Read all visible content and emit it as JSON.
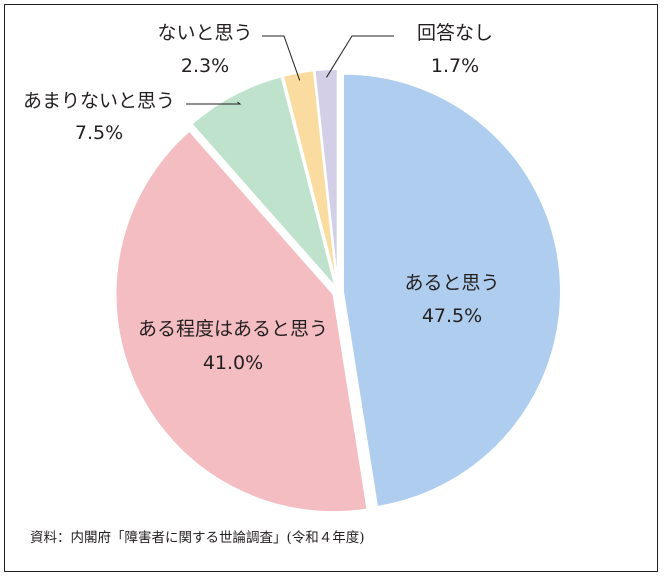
{
  "chart_data": {
    "type": "pie",
    "title": "",
    "slices": [
      {
        "label": "あると思う",
        "value": 47.5,
        "display": "47.5%",
        "color": "#afcdee"
      },
      {
        "label": "ある程度はあると思う",
        "value": 41.0,
        "display": "41.0%",
        "color": "#f4bdc2"
      },
      {
        "label": "あまりないと思う",
        "value": 7.5,
        "display": "7.5%",
        "color": "#bfe2cd"
      },
      {
        "label": "ないと思う",
        "value": 2.3,
        "display": "2.3%",
        "color": "#fbdca0"
      },
      {
        "label": "回答なし",
        "value": 1.7,
        "display": "1.7%",
        "color": "#d2cfe6"
      }
    ],
    "start": "12 o'clock",
    "direction": "clockwise",
    "legend": "none",
    "source": "資料：内閣府「障害者に関する世論調査」(令和４年度)"
  }
}
